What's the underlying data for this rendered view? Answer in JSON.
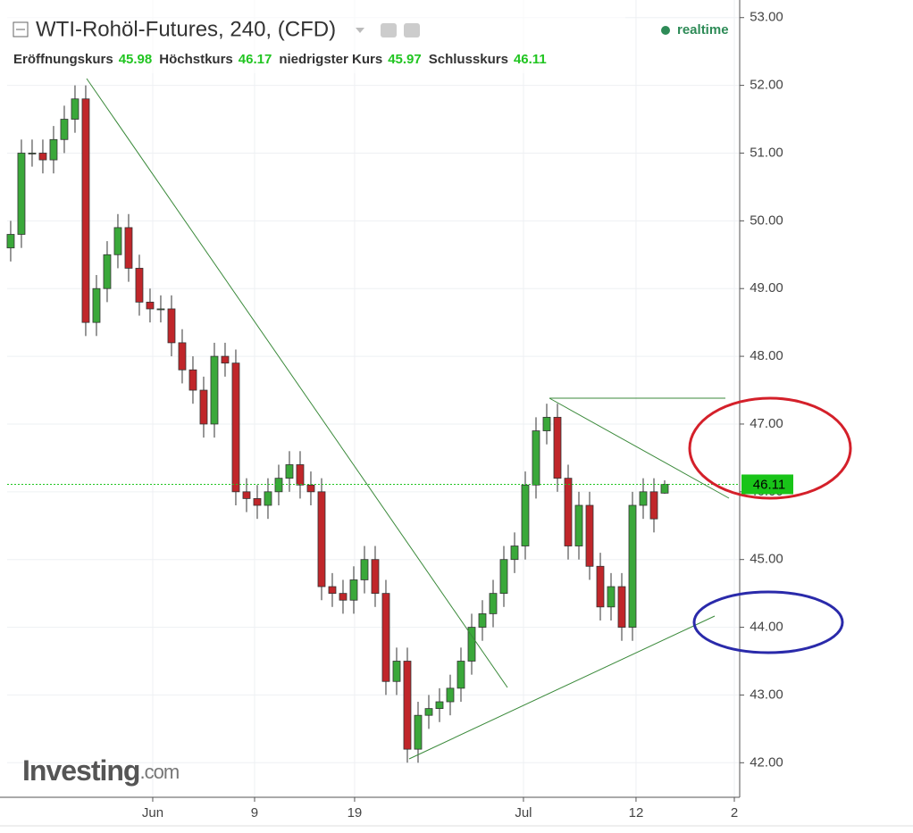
{
  "chart_data": {
    "type": "candlestick",
    "title": "WTI-Rohöl-Futures, 240, (CFD)",
    "ohlc_labels": [
      "Eröffnungskurs",
      "Höchstkurs",
      "niedrigster Kurs",
      "Schlusskurs"
    ],
    "status": "realtime",
    "logo": "Investing",
    "logo_suffix": ".com",
    "up_color": "#3aa83a",
    "down_color": "#c0262a",
    "open": [
      49.6,
      49.8,
      51.0,
      51.0,
      50.9,
      51.2,
      51.5,
      51.8,
      48.5,
      49.0,
      49.5,
      49.9,
      49.3,
      48.8,
      48.7,
      48.7,
      48.2,
      47.8,
      47.5,
      47.0,
      48.0,
      47.9,
      46.0,
      45.9,
      45.8,
      46.0,
      46.2,
      46.4,
      46.1,
      46.0,
      44.6,
      44.5,
      44.4,
      44.7,
      45.0,
      44.5,
      43.2,
      43.5,
      42.2,
      42.7,
      42.8,
      42.9,
      43.1,
      43.5,
      44.0,
      44.2,
      44.5,
      45.0,
      45.2,
      46.1,
      46.9,
      47.1,
      46.2,
      45.2,
      45.8,
      44.9,
      44.3,
      44.6,
      44.0,
      45.8,
      46.0,
      45.98
    ],
    "high": [
      50.0,
      51.2,
      51.2,
      51.2,
      51.4,
      51.7,
      52.0,
      52.0,
      49.2,
      49.7,
      50.1,
      50.1,
      49.5,
      49.0,
      48.9,
      48.9,
      48.4,
      48.0,
      47.7,
      48.2,
      48.2,
      48.1,
      46.2,
      46.1,
      46.2,
      46.4,
      46.6,
      46.6,
      46.3,
      46.2,
      44.8,
      44.7,
      44.9,
      45.2,
      45.2,
      44.7,
      43.7,
      43.7,
      42.9,
      43.0,
      43.1,
      43.3,
      43.7,
      44.2,
      44.4,
      44.7,
      45.2,
      45.4,
      46.3,
      47.1,
      47.3,
      47.3,
      46.4,
      46.0,
      46.0,
      45.1,
      44.8,
      44.8,
      46.0,
      46.2,
      46.2,
      46.17
    ],
    "low": [
      49.4,
      49.6,
      50.8,
      50.7,
      50.7,
      51.0,
      51.3,
      48.3,
      48.3,
      48.8,
      49.3,
      49.1,
      48.6,
      48.5,
      48.5,
      48.0,
      47.6,
      47.3,
      46.8,
      46.8,
      47.7,
      45.8,
      45.7,
      45.6,
      45.6,
      45.8,
      46.0,
      45.9,
      45.8,
      44.4,
      44.3,
      44.2,
      44.2,
      44.5,
      44.3,
      43.0,
      43.0,
      42.0,
      42.0,
      42.5,
      42.6,
      42.7,
      42.9,
      43.3,
      43.8,
      44.0,
      44.3,
      44.8,
      45.0,
      45.9,
      46.7,
      46.0,
      45.0,
      45.0,
      44.7,
      44.1,
      44.1,
      43.8,
      43.8,
      45.6,
      45.4,
      45.97
    ],
    "close": [
      49.8,
      51.0,
      51.0,
      50.9,
      51.2,
      51.5,
      51.8,
      48.5,
      49.0,
      49.5,
      49.9,
      49.3,
      48.8,
      48.7,
      48.7,
      48.2,
      47.8,
      47.5,
      47.0,
      48.0,
      47.9,
      46.0,
      45.9,
      45.8,
      46.0,
      46.2,
      46.4,
      46.1,
      46.0,
      44.6,
      44.5,
      44.4,
      44.7,
      45.0,
      44.5,
      43.2,
      43.5,
      42.2,
      42.7,
      42.8,
      42.9,
      43.1,
      43.5,
      44.0,
      44.2,
      44.5,
      45.0,
      45.2,
      46.1,
      46.9,
      47.1,
      46.2,
      45.2,
      45.8,
      44.9,
      44.3,
      44.6,
      44.0,
      45.8,
      46.0,
      45.6,
      46.11
    ],
    "xlim": [
      -0.33,
      68
    ],
    "xticks": [
      {
        "value": 13.25,
        "label": "Jun"
      },
      {
        "value": 22.75,
        "label": "9"
      },
      {
        "value": 32.08,
        "label": "19"
      },
      {
        "value": 47.83,
        "label": "Jul"
      },
      {
        "value": 58.33,
        "label": "12"
      },
      {
        "value": 67.5,
        "label": "2"
      }
    ],
    "ylim": [
      41.49,
      53.26
    ],
    "yticks": [
      {
        "value": 42,
        "label": "42.00"
      },
      {
        "value": 43,
        "label": "43.00"
      },
      {
        "value": 44,
        "label": "44.00"
      },
      {
        "value": 45,
        "label": "45.00"
      },
      {
        "value": 46,
        "label": "46.00"
      },
      {
        "value": 47,
        "label": "47.00"
      },
      {
        "value": 48,
        "label": "48.00"
      },
      {
        "value": 49,
        "label": "49.00"
      },
      {
        "value": 50,
        "label": "50.00"
      },
      {
        "value": 51,
        "label": "51.00"
      },
      {
        "value": 52,
        "label": "52.00"
      },
      {
        "value": 53,
        "label": "53.00"
      }
    ],
    "grid": true
  }
}
